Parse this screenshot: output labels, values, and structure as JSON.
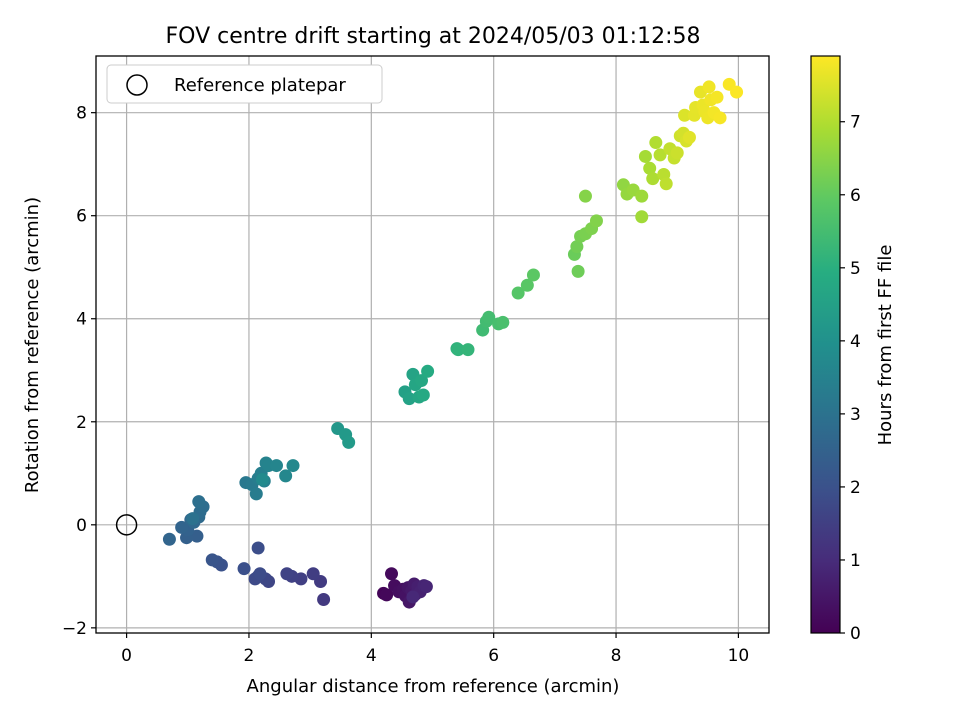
{
  "chart_data": {
    "type": "scatter",
    "title": "FOV centre drift starting at 2024/05/03 01:12:58",
    "xlabel": "Angular distance from reference (arcmin)",
    "ylabel": "Rotation from reference (arcmin)",
    "xlim": [
      -0.5,
      10.5
    ],
    "ylim": [
      -2.1,
      9.1
    ],
    "xticks": [
      0,
      2,
      4,
      6,
      8,
      10
    ],
    "yticks": [
      -2,
      0,
      2,
      4,
      6,
      8
    ],
    "grid": true,
    "legend": {
      "position": "top-left",
      "entries": [
        "Reference platepar"
      ]
    },
    "reference_point": {
      "x": 0,
      "y": 0
    },
    "colorbar": {
      "label": "Hours from first FF file",
      "colormap": "viridis",
      "range": [
        0,
        7.9
      ],
      "ticks": [
        0,
        1,
        2,
        3,
        4,
        5,
        6,
        7
      ]
    },
    "points": [
      {
        "x": 4.2,
        "y": -1.33,
        "c": 0.1
      },
      {
        "x": 4.25,
        "y": -1.36,
        "c": 0.15
      },
      {
        "x": 4.33,
        "y": -0.95,
        "c": 0.2
      },
      {
        "x": 4.38,
        "y": -1.18,
        "c": 0.25
      },
      {
        "x": 4.45,
        "y": -1.3,
        "c": 0.3
      },
      {
        "x": 4.52,
        "y": -1.25,
        "c": 0.35
      },
      {
        "x": 4.56,
        "y": -1.38,
        "c": 0.4
      },
      {
        "x": 4.6,
        "y": -1.22,
        "c": 0.45
      },
      {
        "x": 4.62,
        "y": -1.5,
        "c": 0.5
      },
      {
        "x": 4.66,
        "y": -1.28,
        "c": 0.55
      },
      {
        "x": 4.7,
        "y": -1.15,
        "c": 0.6
      },
      {
        "x": 4.72,
        "y": -1.35,
        "c": 0.65
      },
      {
        "x": 4.76,
        "y": -1.2,
        "c": 0.7
      },
      {
        "x": 4.8,
        "y": -1.3,
        "c": 0.75
      },
      {
        "x": 4.86,
        "y": -1.18,
        "c": 0.8
      },
      {
        "x": 4.9,
        "y": -1.2,
        "c": 0.85
      },
      {
        "x": 4.68,
        "y": -1.4,
        "c": 0.9
      },
      {
        "x": 3.22,
        "y": -1.45,
        "c": 1.35
      },
      {
        "x": 3.17,
        "y": -1.1,
        "c": 1.4
      },
      {
        "x": 3.05,
        "y": -0.95,
        "c": 1.45
      },
      {
        "x": 2.85,
        "y": -1.05,
        "c": 1.5
      },
      {
        "x": 2.7,
        "y": -1.0,
        "c": 1.55
      },
      {
        "x": 2.62,
        "y": -0.95,
        "c": 1.6
      },
      {
        "x": 2.32,
        "y": -1.1,
        "c": 1.65
      },
      {
        "x": 2.27,
        "y": -1.05,
        "c": 1.7
      },
      {
        "x": 2.15,
        "y": -1.0,
        "c": 1.75
      },
      {
        "x": 2.1,
        "y": -1.05,
        "c": 1.8
      },
      {
        "x": 2.18,
        "y": -0.95,
        "c": 1.85
      },
      {
        "x": 2.15,
        "y": -0.45,
        "c": 1.9
      },
      {
        "x": 1.92,
        "y": -0.85,
        "c": 1.95
      },
      {
        "x": 1.55,
        "y": -0.78,
        "c": 2.0
      },
      {
        "x": 1.48,
        "y": -0.72,
        "c": 2.05
      },
      {
        "x": 1.4,
        "y": -0.68,
        "c": 2.1
      },
      {
        "x": 1.15,
        "y": -0.22,
        "c": 2.4
      },
      {
        "x": 0.98,
        "y": -0.25,
        "c": 2.45
      },
      {
        "x": 1.0,
        "y": -0.1,
        "c": 2.5
      },
      {
        "x": 0.9,
        "y": -0.05,
        "c": 2.55
      },
      {
        "x": 0.7,
        "y": -0.28,
        "c": 2.6
      },
      {
        "x": 1.05,
        "y": 0.1,
        "c": 2.65
      },
      {
        "x": 1.1,
        "y": 0.05,
        "c": 2.7
      },
      {
        "x": 1.18,
        "y": 0.15,
        "c": 2.75
      },
      {
        "x": 1.2,
        "y": 0.25,
        "c": 2.8
      },
      {
        "x": 1.25,
        "y": 0.35,
        "c": 2.85
      },
      {
        "x": 1.18,
        "y": 0.45,
        "c": 2.9
      },
      {
        "x": 1.08,
        "y": 0.12,
        "c": 2.95
      },
      {
        "x": 1.95,
        "y": 0.82,
        "c": 3.2
      },
      {
        "x": 2.05,
        "y": 0.78,
        "c": 3.25
      },
      {
        "x": 2.12,
        "y": 0.6,
        "c": 3.3
      },
      {
        "x": 2.15,
        "y": 0.9,
        "c": 3.35
      },
      {
        "x": 2.2,
        "y": 1.0,
        "c": 3.4
      },
      {
        "x": 2.25,
        "y": 0.85,
        "c": 3.45
      },
      {
        "x": 2.28,
        "y": 1.2,
        "c": 3.5
      },
      {
        "x": 2.32,
        "y": 1.15,
        "c": 3.55
      },
      {
        "x": 2.45,
        "y": 1.15,
        "c": 3.6
      },
      {
        "x": 2.6,
        "y": 0.95,
        "c": 3.65
      },
      {
        "x": 2.72,
        "y": 1.15,
        "c": 3.7
      },
      {
        "x": 2.22,
        "y": 0.88,
        "c": 3.75
      },
      {
        "x": 3.45,
        "y": 1.87,
        "c": 4.2
      },
      {
        "x": 3.58,
        "y": 1.75,
        "c": 4.25
      },
      {
        "x": 3.63,
        "y": 1.6,
        "c": 4.3
      },
      {
        "x": 4.55,
        "y": 2.58,
        "c": 4.5
      },
      {
        "x": 4.62,
        "y": 2.45,
        "c": 4.55
      },
      {
        "x": 4.68,
        "y": 2.92,
        "c": 4.6
      },
      {
        "x": 4.72,
        "y": 2.72,
        "c": 4.65
      },
      {
        "x": 4.78,
        "y": 2.48,
        "c": 4.7
      },
      {
        "x": 4.82,
        "y": 2.8,
        "c": 4.75
      },
      {
        "x": 4.85,
        "y": 2.52,
        "c": 4.8
      },
      {
        "x": 4.92,
        "y": 2.98,
        "c": 4.85
      },
      {
        "x": 5.4,
        "y": 3.42,
        "c": 5.1
      },
      {
        "x": 5.42,
        "y": 3.4,
        "c": 5.15
      },
      {
        "x": 5.58,
        "y": 3.4,
        "c": 5.2
      },
      {
        "x": 5.82,
        "y": 3.78,
        "c": 5.4
      },
      {
        "x": 5.88,
        "y": 3.95,
        "c": 5.45
      },
      {
        "x": 5.92,
        "y": 4.03,
        "c": 5.5
      },
      {
        "x": 6.08,
        "y": 3.9,
        "c": 5.55
      },
      {
        "x": 6.15,
        "y": 3.93,
        "c": 5.6
      },
      {
        "x": 6.4,
        "y": 4.5,
        "c": 5.8
      },
      {
        "x": 6.55,
        "y": 4.65,
        "c": 5.85
      },
      {
        "x": 6.65,
        "y": 4.85,
        "c": 5.9
      },
      {
        "x": 7.32,
        "y": 5.25,
        "c": 6.1
      },
      {
        "x": 7.38,
        "y": 4.92,
        "c": 6.15
      },
      {
        "x": 7.36,
        "y": 5.4,
        "c": 6.2
      },
      {
        "x": 7.42,
        "y": 5.6,
        "c": 6.25
      },
      {
        "x": 7.5,
        "y": 5.65,
        "c": 6.3
      },
      {
        "x": 7.6,
        "y": 5.75,
        "c": 6.35
      },
      {
        "x": 7.68,
        "y": 5.9,
        "c": 6.4
      },
      {
        "x": 7.5,
        "y": 6.38,
        "c": 6.45
      },
      {
        "x": 8.12,
        "y": 6.6,
        "c": 6.6
      },
      {
        "x": 8.18,
        "y": 6.42,
        "c": 6.65
      },
      {
        "x": 8.28,
        "y": 6.5,
        "c": 6.7
      },
      {
        "x": 8.42,
        "y": 6.38,
        "c": 6.75
      },
      {
        "x": 8.42,
        "y": 5.98,
        "c": 6.8
      },
      {
        "x": 8.48,
        "y": 7.15,
        "c": 6.85
      },
      {
        "x": 8.55,
        "y": 6.92,
        "c": 6.9
      },
      {
        "x": 8.6,
        "y": 6.72,
        "c": 6.95
      },
      {
        "x": 8.65,
        "y": 7.42,
        "c": 7.0
      },
      {
        "x": 8.72,
        "y": 7.18,
        "c": 7.05
      },
      {
        "x": 8.78,
        "y": 6.8,
        "c": 7.1
      },
      {
        "x": 8.82,
        "y": 6.62,
        "c": 7.15
      },
      {
        "x": 8.88,
        "y": 7.3,
        "c": 7.2
      },
      {
        "x": 8.95,
        "y": 7.12,
        "c": 7.25
      },
      {
        "x": 9.0,
        "y": 7.22,
        "c": 7.3
      },
      {
        "x": 9.05,
        "y": 7.55,
        "c": 7.35
      },
      {
        "x": 9.1,
        "y": 7.6,
        "c": 7.4
      },
      {
        "x": 9.15,
        "y": 7.45,
        "c": 7.45
      },
      {
        "x": 9.12,
        "y": 7.95,
        "c": 7.5
      },
      {
        "x": 9.2,
        "y": 7.52,
        "c": 7.55
      },
      {
        "x": 9.28,
        "y": 7.95,
        "c": 7.6
      },
      {
        "x": 9.3,
        "y": 8.1,
        "c": 7.62
      },
      {
        "x": 9.38,
        "y": 8.4,
        "c": 7.65
      },
      {
        "x": 9.42,
        "y": 8.15,
        "c": 7.68
      },
      {
        "x": 9.45,
        "y": 8.02,
        "c": 7.7
      },
      {
        "x": 9.5,
        "y": 7.9,
        "c": 7.72
      },
      {
        "x": 9.52,
        "y": 8.5,
        "c": 7.74
      },
      {
        "x": 9.55,
        "y": 8.25,
        "c": 7.76
      },
      {
        "x": 9.6,
        "y": 8.0,
        "c": 7.78
      },
      {
        "x": 9.65,
        "y": 8.3,
        "c": 7.8
      },
      {
        "x": 9.7,
        "y": 7.9,
        "c": 7.82
      },
      {
        "x": 9.85,
        "y": 8.55,
        "c": 7.85
      },
      {
        "x": 9.97,
        "y": 8.4,
        "c": 7.88
      }
    ]
  }
}
